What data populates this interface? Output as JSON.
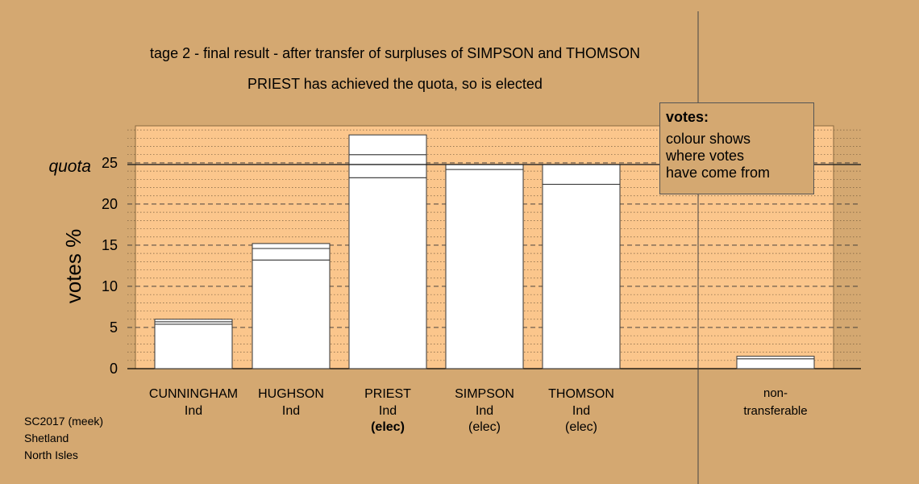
{
  "title": "tage 2 - final result - after transfer of surpluses of SIMPSON and THOMSON",
  "subtitle": "PRIEST has achieved the quota, so is elected",
  "legend": {
    "title": "votes:",
    "lines": [
      "colour shows",
      "where votes",
      "have come from"
    ]
  },
  "footer": {
    "line1": "SC2017 (meek)",
    "line2": "Shetland",
    "line3": "North Isles"
  },
  "colors": {
    "background": "#d4a871",
    "plot_area": "#fbc68c",
    "bar_fill": "#ffffff"
  },
  "chart_data": {
    "type": "bar",
    "ylabel": "votes %",
    "ylim": [
      0,
      29.5
    ],
    "yticks": [
      0,
      5,
      10,
      15,
      20,
      25
    ],
    "quota": 24.8,
    "quota_label": "quota",
    "candidates": [
      {
        "name": "CUNNINGHAM",
        "party": "Ind",
        "status": "",
        "segments": [
          5.4,
          0.3,
          0.3
        ]
      },
      {
        "name": "HUGHSON",
        "party": "Ind",
        "status": "",
        "segments": [
          13.2,
          1.4,
          0.6
        ]
      },
      {
        "name": "PRIEST",
        "party": "Ind",
        "status": "(elec)",
        "segments": [
          23.2,
          2.8,
          2.4
        ]
      },
      {
        "name": "SIMPSON",
        "party": "Ind",
        "status": "(elec)",
        "segments": [
          24.2,
          0.6
        ]
      },
      {
        "name": "THOMSON",
        "party": "Ind",
        "status": "(elec)",
        "segments": [
          22.4,
          2.4
        ]
      }
    ],
    "nontransferable": {
      "label_line1": "non-",
      "label_line2": "transferable",
      "segments": [
        1.2,
        0.3
      ]
    }
  }
}
